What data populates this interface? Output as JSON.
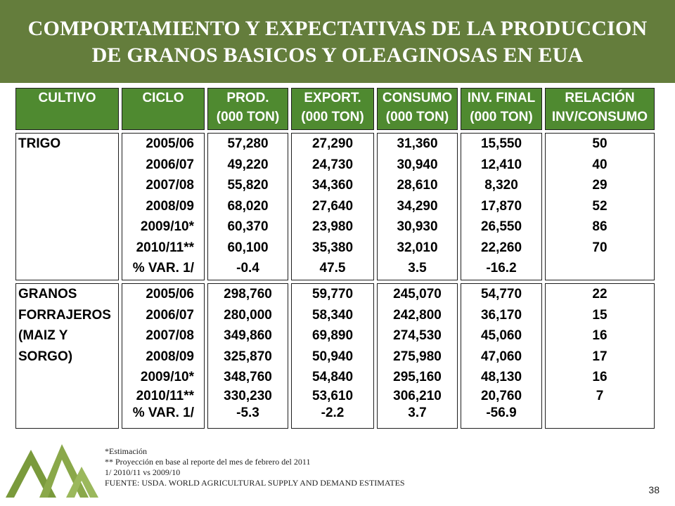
{
  "title": {
    "line1": "COMPORTAMIENTO Y EXPECTATIVAS DE LA PRODUCCION",
    "line2": "DE GRANOS BASICOS Y OLEAGINOSAS EN EUA"
  },
  "colors": {
    "banner": "#647d3c",
    "header": "#4f8a30",
    "logo": "#7a9a3c"
  },
  "headers": [
    {
      "l1": "CULTIVO",
      "l2": ""
    },
    {
      "l1": "CICLO",
      "l2": ""
    },
    {
      "l1": "PROD.",
      "l2": "(000 TON)"
    },
    {
      "l1": "EXPORT.",
      "l2": "(000 TON)"
    },
    {
      "l1": "CONSUMO",
      "l2": "(000 TON)"
    },
    {
      "l1": "INV. FINAL",
      "l2": "(000 TON)"
    },
    {
      "l1": "RELACIÓN",
      "l2": "INV/CONSUMO"
    }
  ],
  "sections": [
    {
      "crop": [
        "TRIGO"
      ],
      "cycle": [
        "2005/06",
        "2006/07",
        "2007/08",
        "2008/09",
        "2009/10*",
        "2010/11**",
        "% VAR. 1/"
      ],
      "prod": [
        "57,280",
        "49,220",
        "55,820",
        "68,020",
        "60,370",
        "60,100",
        "-0.4"
      ],
      "export": [
        "27,290",
        "24,730",
        "34,360",
        "27,640",
        "23,980",
        "35,380",
        "47.5"
      ],
      "consumo": [
        "31,360",
        "30,940",
        "28,610",
        "34,290",
        "30,930",
        "32,010",
        "3.5"
      ],
      "inv": [
        "15,550",
        "12,410",
        "8,320",
        "17,870",
        "26,550",
        "22,260",
        "-16.2"
      ],
      "rel": [
        "50",
        "40",
        "29",
        "52",
        "86",
        "70",
        ""
      ]
    },
    {
      "crop": [
        "GRANOS",
        "FORRAJEROS",
        "(MAIZ Y",
        "SORGO)"
      ],
      "cycle": [
        "2005/06",
        "2006/07",
        "2007/08",
        "2008/09",
        "2009/10*",
        "2010/11**",
        "% VAR. 1/"
      ],
      "prod": [
        "298,760",
        "280,000",
        "349,860",
        "325,870",
        "348,760",
        "330,230",
        "-5.3"
      ],
      "export": [
        "59,770",
        "58,340",
        "69,890",
        "50,940",
        "54,840",
        "53,610",
        "-2.2"
      ],
      "consumo": [
        "245,070",
        "242,800",
        "274,530",
        "275,980",
        "295,160",
        "306,210",
        "3.7"
      ],
      "inv": [
        "54,770",
        "36,170",
        "45,060",
        "47,060",
        "48,130",
        "20,760",
        "-56.9"
      ],
      "rel": [
        "22",
        "15",
        "16",
        "17",
        "16",
        "7",
        ""
      ]
    }
  ],
  "notes": [
    "*Estimación",
    "** Proyección en base al reporte  del mes de febrero del 2011",
    "1/ 2010/11 vs 2009/10",
    "FUENTE: USDA. WORLD AGRICULTURAL SUPPLY AND DEMAND ESTIMATES"
  ],
  "page_number": "38"
}
